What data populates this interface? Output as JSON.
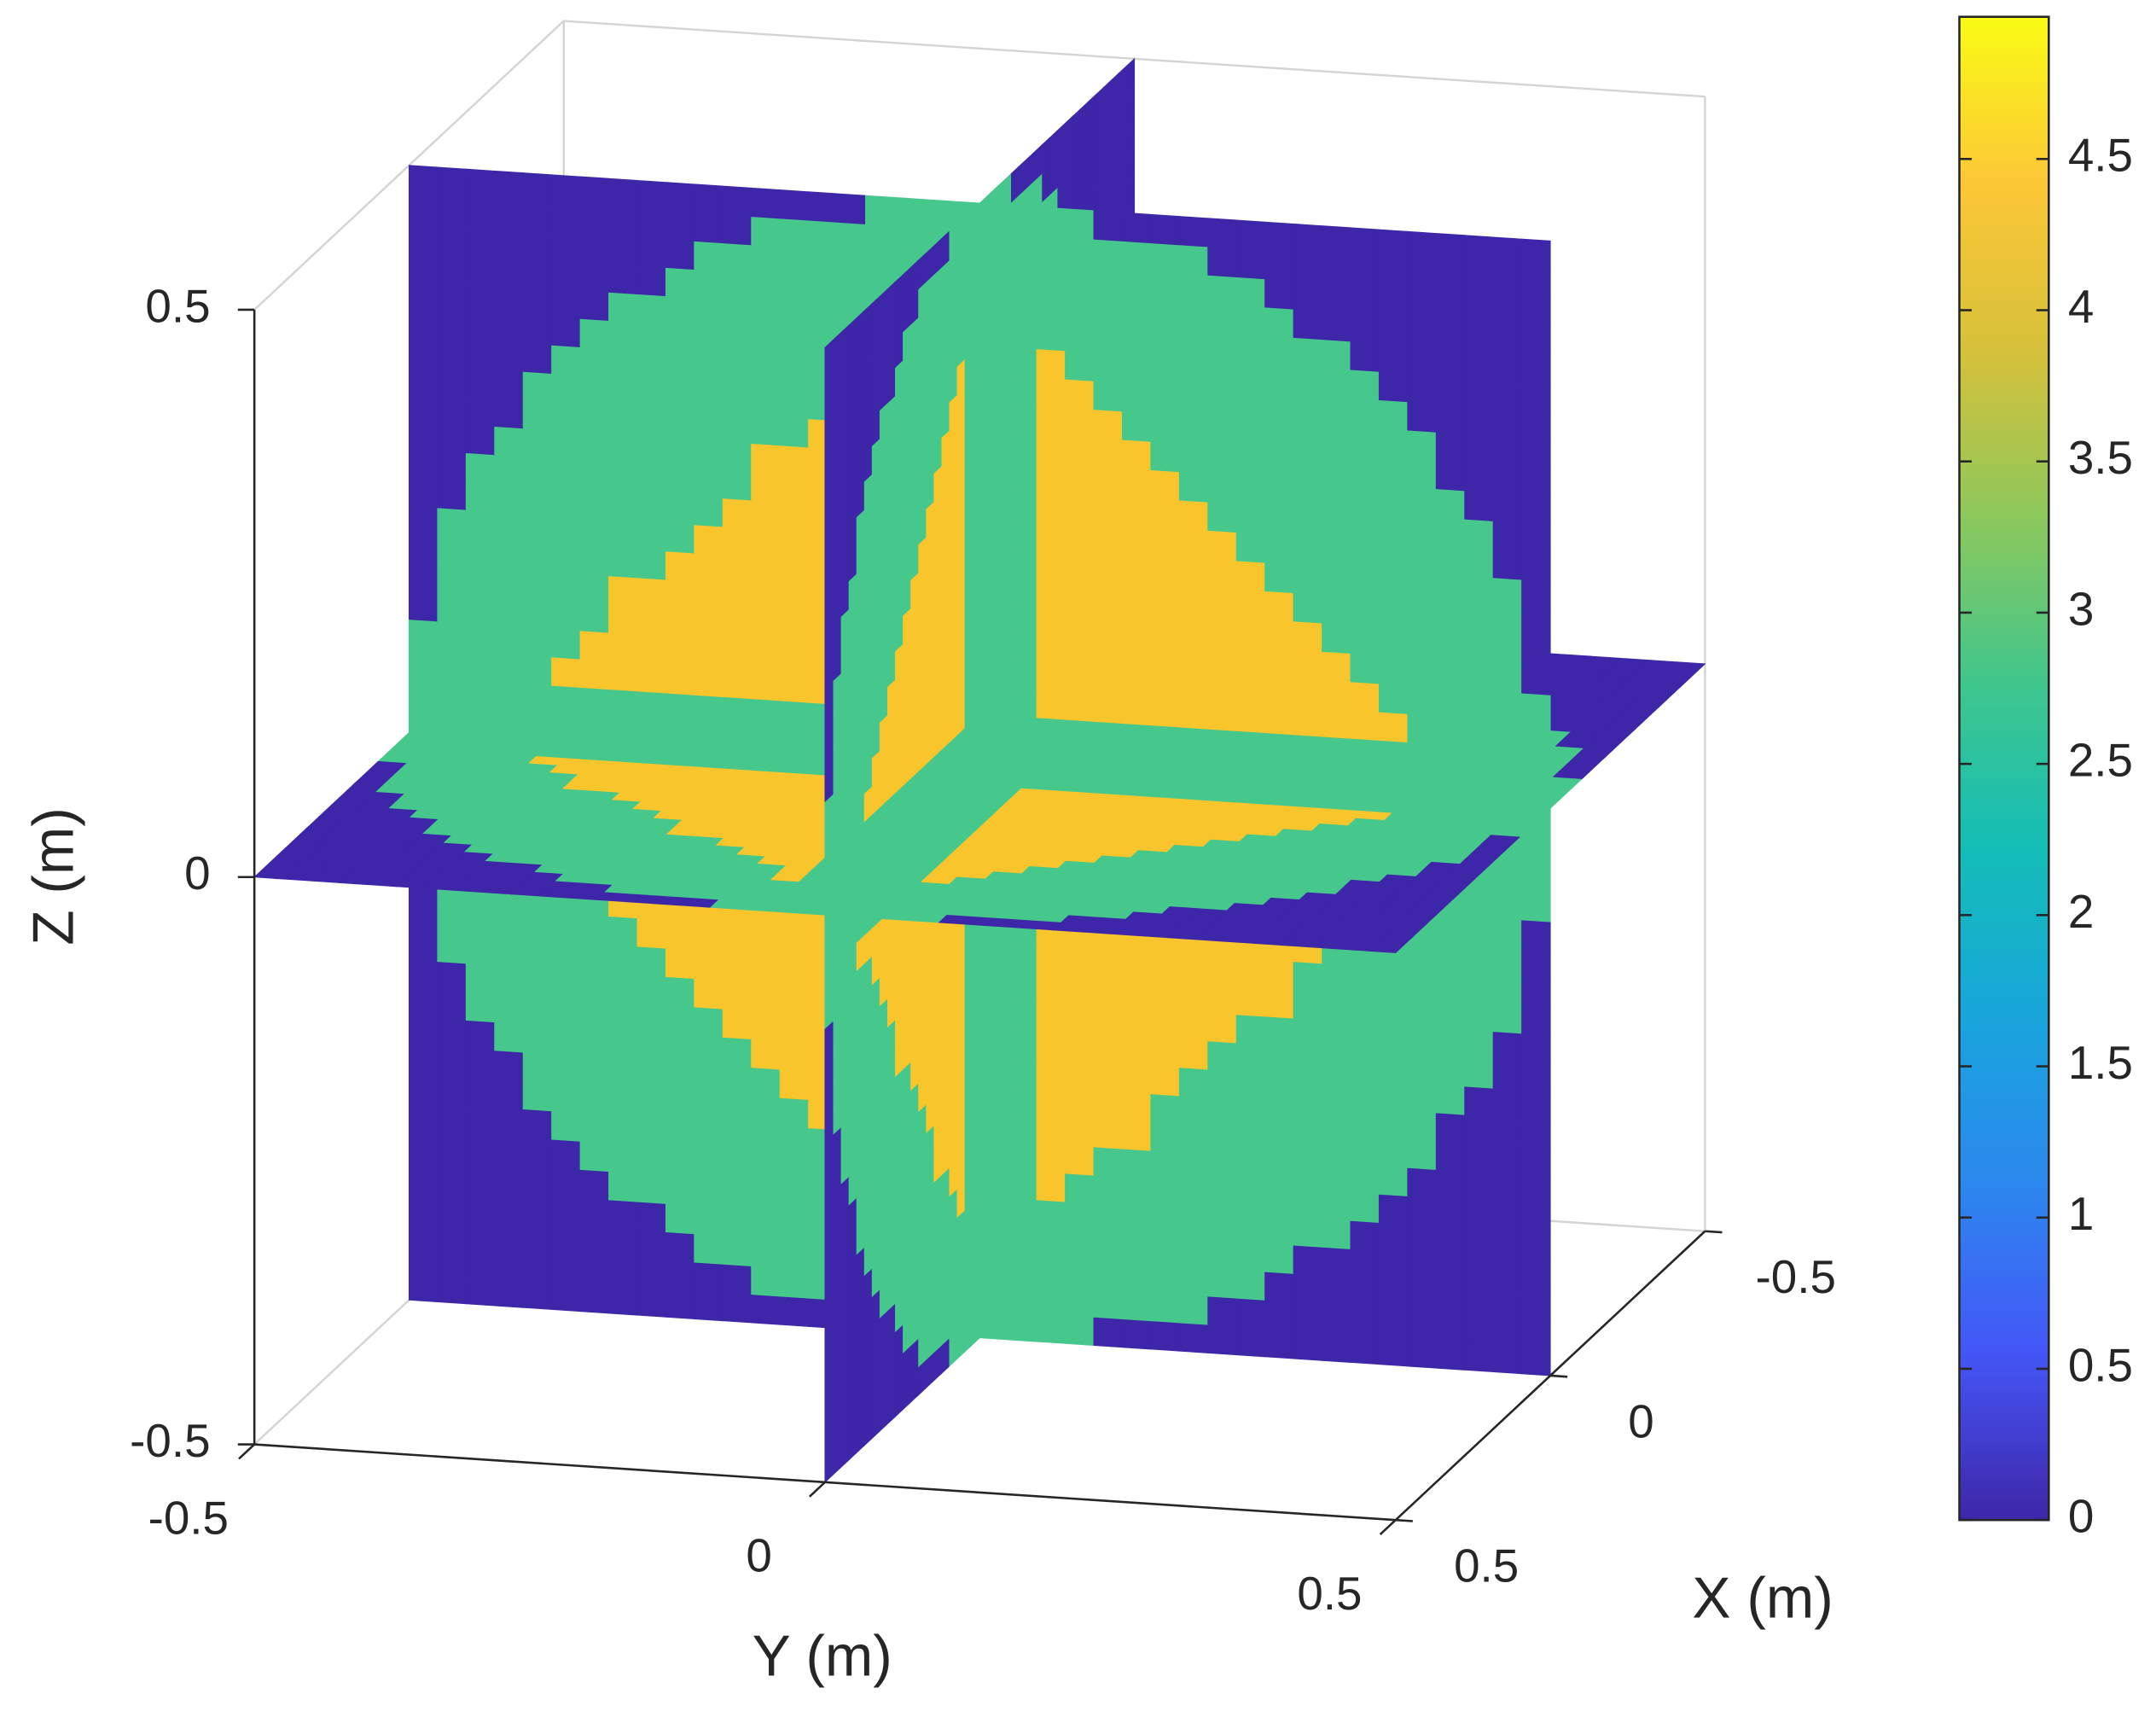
{
  "chart_data": {
    "type": "slice",
    "xlabel": "X (m)",
    "ylabel": "Y (m)",
    "zlabel": "Z (m)",
    "xlim": [
      -0.5,
      0.5
    ],
    "xticks": [
      -0.5,
      0,
      0.5
    ],
    "ylim": [
      -0.5,
      0.5
    ],
    "yticks": [
      -0.5,
      0,
      0.5
    ],
    "zlim": [
      -0.5,
      0.5
    ],
    "zticks": [
      -0.5,
      0,
      0.5
    ],
    "clim": [
      0,
      4.97
    ],
    "cticks": [
      0,
      0.5,
      1,
      1.5,
      2,
      2.5,
      3,
      3.5,
      4,
      4.5
    ],
    "colormap": [
      "#3e26a8",
      "#4456f6",
      "#2c87ee",
      "#19a5dc",
      "#13bdb7",
      "#3fc68c",
      "#8cc85c",
      "#d6c13a",
      "#fcc737",
      "#f9fb15"
    ]
  }
}
